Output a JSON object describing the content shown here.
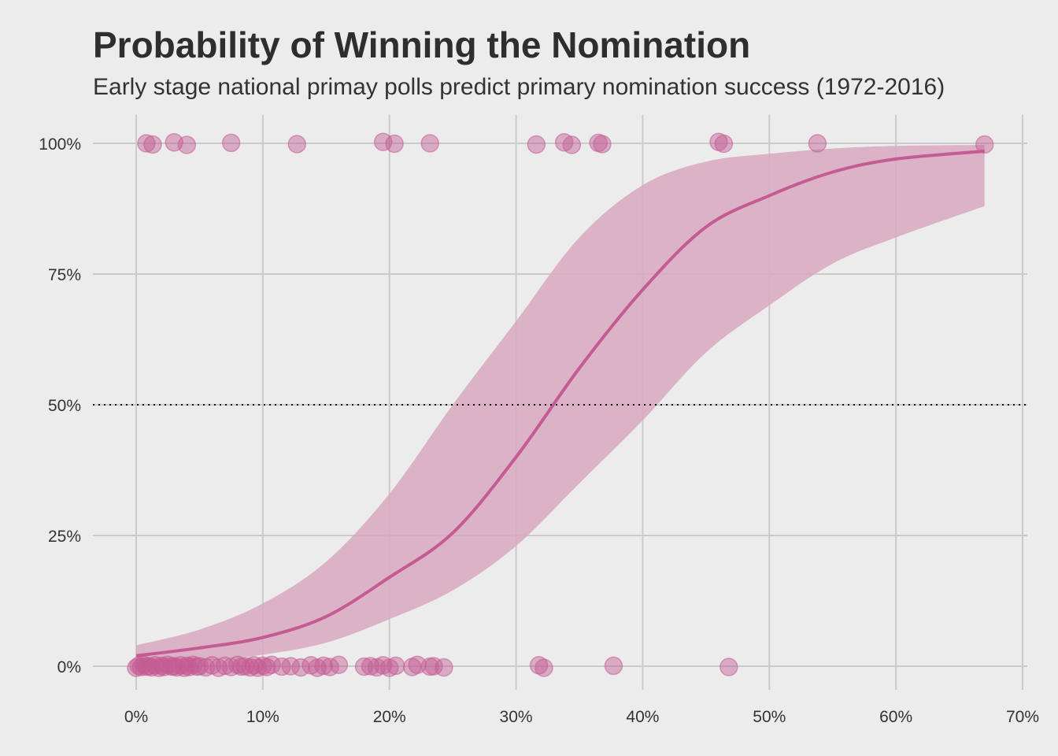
{
  "title": "Probability of Winning the Nomination",
  "subtitle": "Early stage national primay polls predict primary nomination success (1972-2016)",
  "colors": {
    "background": "#ececec",
    "grid": "#cbcbcb",
    "series": "#c45b93",
    "band": "#d9a9c0",
    "reference": "#111111"
  },
  "chart_data": {
    "type": "scatter",
    "title": "Probability of Winning the Nomination",
    "subtitle": "Early stage national primay polls predict primary nomination success (1972-2016)",
    "xlabel": "",
    "ylabel": "",
    "xlim": [
      0,
      0.7
    ],
    "ylim": [
      0,
      1
    ],
    "x_ticks": [
      0,
      0.1,
      0.2,
      0.3,
      0.4,
      0.5,
      0.6,
      0.7
    ],
    "x_tick_labels": [
      "0%",
      "10%",
      "20%",
      "30%",
      "40%",
      "50%",
      "60%",
      "70%"
    ],
    "y_ticks": [
      0,
      0.25,
      0.5,
      0.75,
      1
    ],
    "y_tick_labels": [
      "0%",
      "25%",
      "50%",
      "75%",
      "100%"
    ],
    "grid": true,
    "legend": "none",
    "reference_line": {
      "y": 0.5,
      "style": "dotted"
    },
    "winners": [
      0.008,
      0.013,
      0.03,
      0.04,
      0.075,
      0.127,
      0.195,
      0.204,
      0.232,
      0.316,
      0.338,
      0.344,
      0.365,
      0.368,
      0.46,
      0.464,
      0.538,
      0.67
    ],
    "non_winners": [
      0.0,
      0.002,
      0.004,
      0.006,
      0.008,
      0.01,
      0.012,
      0.015,
      0.018,
      0.02,
      0.022,
      0.025,
      0.028,
      0.03,
      0.032,
      0.035,
      0.038,
      0.04,
      0.042,
      0.045,
      0.048,
      0.05,
      0.055,
      0.06,
      0.065,
      0.07,
      0.075,
      0.08,
      0.083,
      0.086,
      0.09,
      0.093,
      0.096,
      0.1,
      0.103,
      0.107,
      0.115,
      0.122,
      0.13,
      0.138,
      0.143,
      0.148,
      0.153,
      0.16,
      0.18,
      0.185,
      0.19,
      0.195,
      0.2,
      0.205,
      0.218,
      0.222,
      0.232,
      0.235,
      0.243,
      0.318,
      0.322,
      0.377,
      0.468
    ],
    "fit": {
      "x": [
        0,
        0.05,
        0.1,
        0.15,
        0.2,
        0.25,
        0.3,
        0.35,
        0.4,
        0.45,
        0.5,
        0.55,
        0.6,
        0.67
      ],
      "y": [
        0.02,
        0.035,
        0.055,
        0.095,
        0.17,
        0.255,
        0.4,
        0.57,
        0.72,
        0.84,
        0.9,
        0.945,
        0.97,
        0.985
      ],
      "lower": [
        0.005,
        0.01,
        0.022,
        0.045,
        0.09,
        0.145,
        0.23,
        0.35,
        0.47,
        0.6,
        0.69,
        0.77,
        0.82,
        0.88
      ],
      "upper": [
        0.04,
        0.07,
        0.12,
        0.2,
        0.33,
        0.5,
        0.66,
        0.82,
        0.92,
        0.965,
        0.98,
        0.99,
        0.995,
        0.997
      ]
    }
  }
}
